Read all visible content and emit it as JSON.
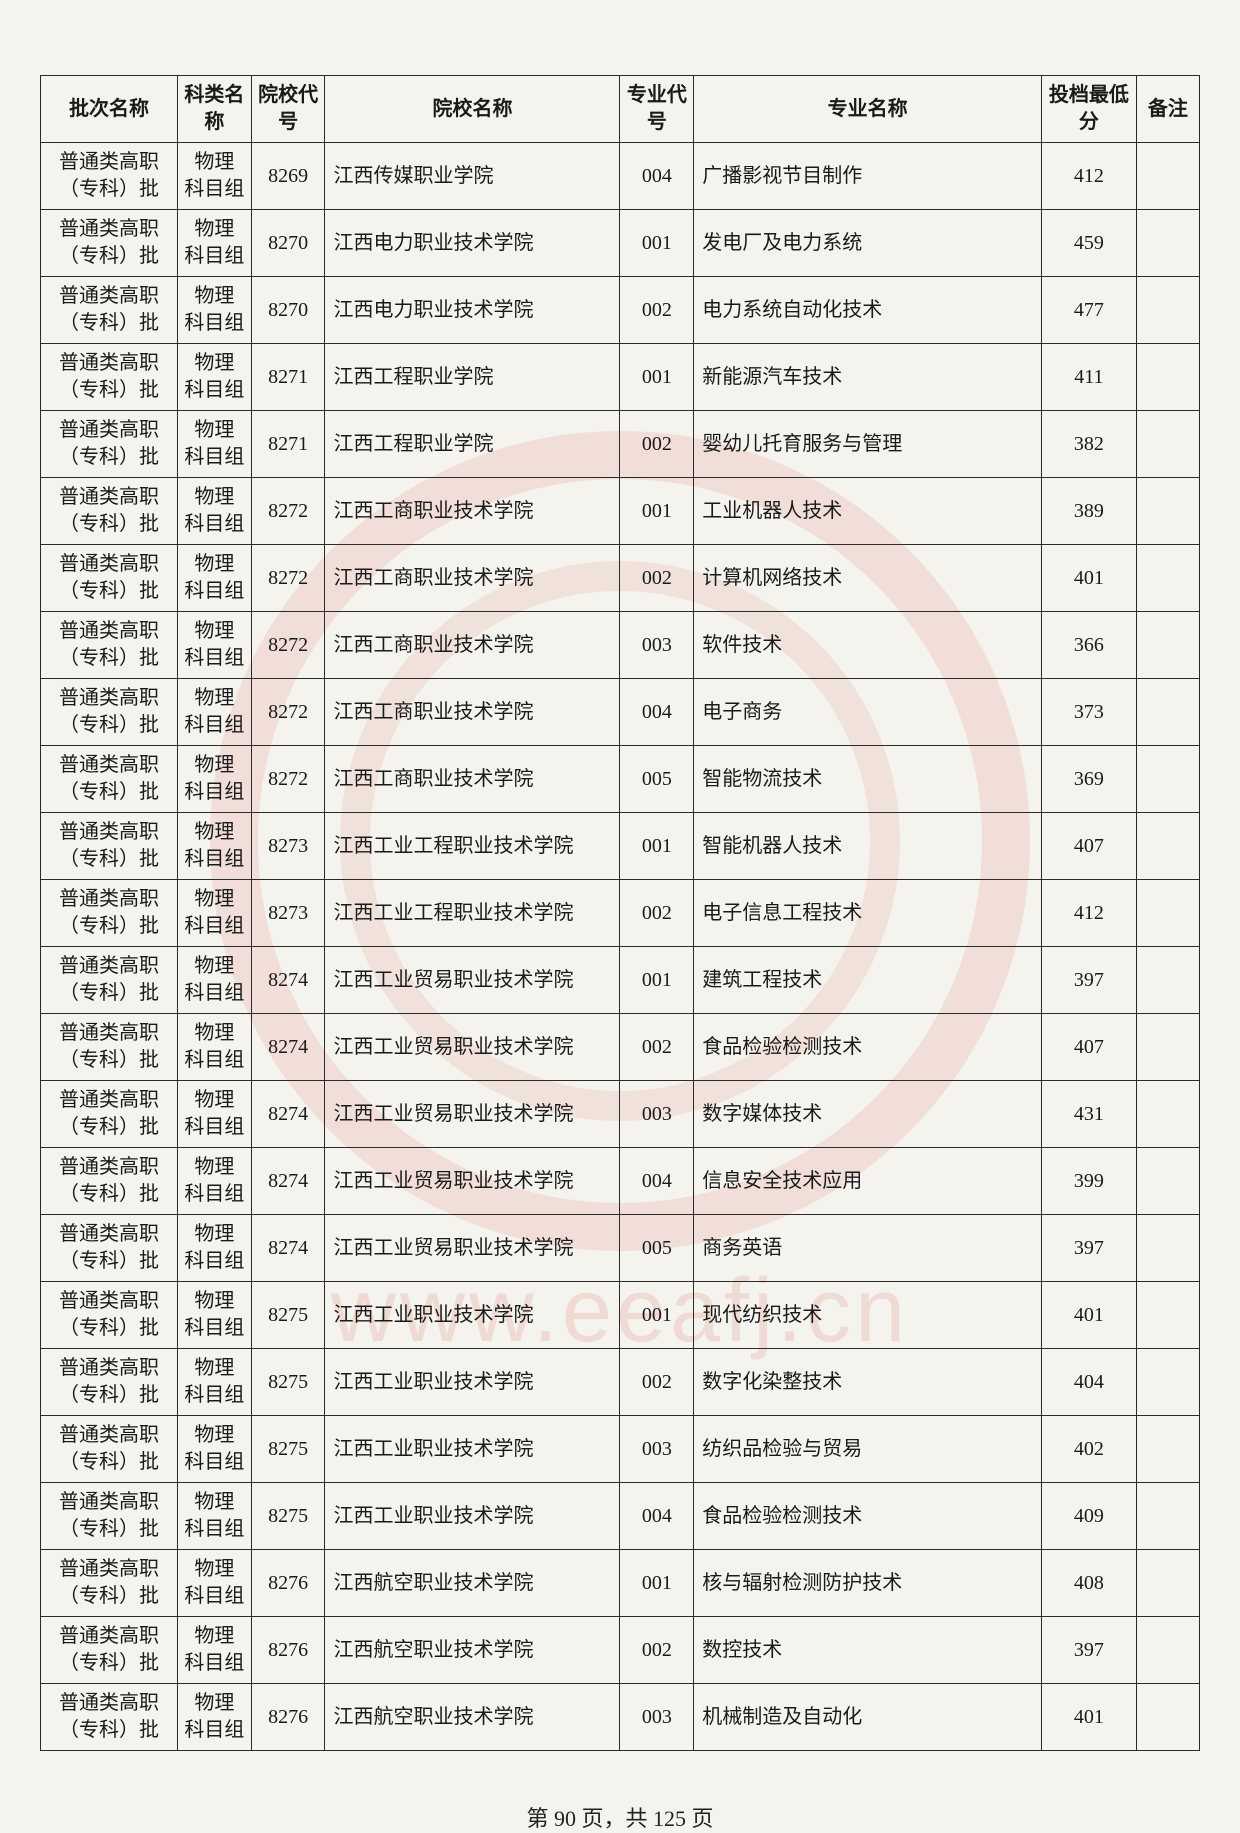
{
  "columns": [
    "批次名称",
    "科类名称",
    "院校代号",
    "院校名称",
    "专业代号",
    "专业名称",
    "投档最低分",
    "备注"
  ],
  "rows": [
    [
      "普通类高职（专科）批",
      "物理科目组",
      "8269",
      "江西传媒职业学院",
      "004",
      "广播影视节目制作",
      "412",
      ""
    ],
    [
      "普通类高职（专科）批",
      "物理科目组",
      "8270",
      "江西电力职业技术学院",
      "001",
      "发电厂及电力系统",
      "459",
      ""
    ],
    [
      "普通类高职（专科）批",
      "物理科目组",
      "8270",
      "江西电力职业技术学院",
      "002",
      "电力系统自动化技术",
      "477",
      ""
    ],
    [
      "普通类高职（专科）批",
      "物理科目组",
      "8271",
      "江西工程职业学院",
      "001",
      "新能源汽车技术",
      "411",
      ""
    ],
    [
      "普通类高职（专科）批",
      "物理科目组",
      "8271",
      "江西工程职业学院",
      "002",
      "婴幼儿托育服务与管理",
      "382",
      ""
    ],
    [
      "普通类高职（专科）批",
      "物理科目组",
      "8272",
      "江西工商职业技术学院",
      "001",
      "工业机器人技术",
      "389",
      ""
    ],
    [
      "普通类高职（专科）批",
      "物理科目组",
      "8272",
      "江西工商职业技术学院",
      "002",
      "计算机网络技术",
      "401",
      ""
    ],
    [
      "普通类高职（专科）批",
      "物理科目组",
      "8272",
      "江西工商职业技术学院",
      "003",
      "软件技术",
      "366",
      ""
    ],
    [
      "普通类高职（专科）批",
      "物理科目组",
      "8272",
      "江西工商职业技术学院",
      "004",
      "电子商务",
      "373",
      ""
    ],
    [
      "普通类高职（专科）批",
      "物理科目组",
      "8272",
      "江西工商职业技术学院",
      "005",
      "智能物流技术",
      "369",
      ""
    ],
    [
      "普通类高职（专科）批",
      "物理科目组",
      "8273",
      "江西工业工程职业技术学院",
      "001",
      "智能机器人技术",
      "407",
      ""
    ],
    [
      "普通类高职（专科）批",
      "物理科目组",
      "8273",
      "江西工业工程职业技术学院",
      "002",
      "电子信息工程技术",
      "412",
      ""
    ],
    [
      "普通类高职（专科）批",
      "物理科目组",
      "8274",
      "江西工业贸易职业技术学院",
      "001",
      "建筑工程技术",
      "397",
      ""
    ],
    [
      "普通类高职（专科）批",
      "物理科目组",
      "8274",
      "江西工业贸易职业技术学院",
      "002",
      "食品检验检测技术",
      "407",
      ""
    ],
    [
      "普通类高职（专科）批",
      "物理科目组",
      "8274",
      "江西工业贸易职业技术学院",
      "003",
      "数字媒体技术",
      "431",
      ""
    ],
    [
      "普通类高职（专科）批",
      "物理科目组",
      "8274",
      "江西工业贸易职业技术学院",
      "004",
      "信息安全技术应用",
      "399",
      ""
    ],
    [
      "普通类高职（专科）批",
      "物理科目组",
      "8274",
      "江西工业贸易职业技术学院",
      "005",
      "商务英语",
      "397",
      ""
    ],
    [
      "普通类高职（专科）批",
      "物理科目组",
      "8275",
      "江西工业职业技术学院",
      "001",
      "现代纺织技术",
      "401",
      ""
    ],
    [
      "普通类高职（专科）批",
      "物理科目组",
      "8275",
      "江西工业职业技术学院",
      "002",
      "数字化染整技术",
      "404",
      ""
    ],
    [
      "普通类高职（专科）批",
      "物理科目组",
      "8275",
      "江西工业职业技术学院",
      "003",
      "纺织品检验与贸易",
      "402",
      ""
    ],
    [
      "普通类高职（专科）批",
      "物理科目组",
      "8275",
      "江西工业职业技术学院",
      "004",
      "食品检验检测技术",
      "409",
      ""
    ],
    [
      "普通类高职（专科）批",
      "物理科目组",
      "8276",
      "江西航空职业技术学院",
      "001",
      "核与辐射检测防护技术",
      "408",
      ""
    ],
    [
      "普通类高职（专科）批",
      "物理科目组",
      "8276",
      "江西航空职业技术学院",
      "002",
      "数控技术",
      "397",
      ""
    ],
    [
      "普通类高职（专科）批",
      "物理科目组",
      "8276",
      "江西航空职业技术学院",
      "003",
      "机械制造及自动化",
      "401",
      ""
    ]
  ],
  "pager": {
    "prefix": "第 ",
    "current": "90",
    "middle": " 页，共 ",
    "total": "125",
    "suffix": " 页"
  },
  "watermark_url": "www.eeafj.cn"
}
